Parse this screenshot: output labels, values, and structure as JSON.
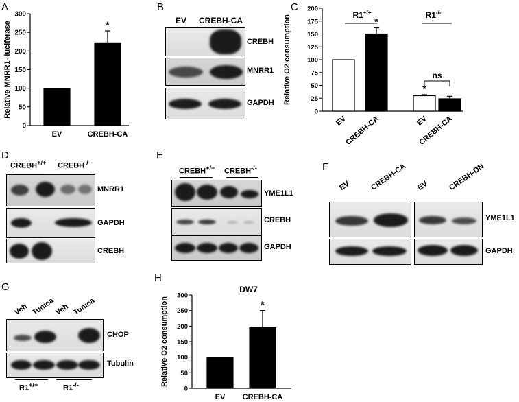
{
  "panels": {
    "A": {
      "letter": "A"
    },
    "B": {
      "letter": "B",
      "lanes": [
        "EV",
        "CREBH-CA"
      ],
      "rows": [
        "CREBH",
        "MNRR1",
        "GAPDH"
      ]
    },
    "C": {
      "letter": "C",
      "group_labels": [
        "R1+/+",
        "R1-/-"
      ],
      "ns_label": "ns"
    },
    "D": {
      "letter": "D",
      "groups": [
        "CREBH+/+",
        "CREBH-/-"
      ],
      "rows": [
        "MNRR1",
        "GAPDH",
        "CREBH"
      ]
    },
    "E": {
      "letter": "E",
      "groups": [
        "CREBH+/+",
        "CREBH-/-"
      ],
      "rows": [
        "YME1L1",
        "CREBH",
        "GAPDH"
      ]
    },
    "F": {
      "letter": "F",
      "lanes_left": [
        "EV",
        "CREBH-CA"
      ],
      "lanes_right": [
        "EV",
        "CREBH-DN"
      ],
      "rows": [
        "YME1L1",
        "GAPDH"
      ]
    },
    "G": {
      "letter": "G",
      "lanes": [
        "Veh",
        "Tunica",
        "Veh",
        "Tunica"
      ],
      "rows": [
        "CHOP",
        "Tubulin"
      ],
      "groups": [
        "R1+/+",
        "R1-/-"
      ]
    },
    "H": {
      "letter": "H"
    }
  },
  "colors": {
    "bar_dark": "#000000",
    "bar_open": "#ffffff",
    "band": "#1b1b1b"
  },
  "chart_data": [
    {
      "panel": "A",
      "type": "bar",
      "categories": [
        "EV",
        "CREBH-CA"
      ],
      "values": [
        100,
        222
      ],
      "errors": [
        0,
        32
      ],
      "significance": [
        "",
        "*"
      ],
      "ylabel": "Relative MNRR1- luciferase",
      "ylim": [
        0,
        300
      ],
      "yticks": [
        0,
        50,
        100,
        150,
        200,
        250,
        300
      ],
      "grid": false
    },
    {
      "panel": "C",
      "type": "bar",
      "categories": [
        "EV",
        "CREBH-CA",
        "EV",
        "CREBH-CA"
      ],
      "groups": [
        "R1+/+",
        "R1+/+",
        "R1-/-",
        "R1-/-"
      ],
      "values": [
        100,
        150,
        30,
        24
      ],
      "errors": [
        0,
        12,
        2,
        5
      ],
      "fills": [
        "white",
        "black",
        "white",
        "black"
      ],
      "significance": [
        "",
        "*",
        "*",
        ""
      ],
      "ylabel": "Relative O2 consumption",
      "ylim": [
        0,
        200
      ],
      "yticks": [
        0,
        25,
        50,
        75,
        100,
        125,
        150,
        175,
        200
      ],
      "grid": false
    },
    {
      "panel": "H",
      "type": "bar",
      "title": "DW7",
      "categories": [
        "EV",
        "CREBH-CA"
      ],
      "values": [
        100,
        195
      ],
      "errors": [
        0,
        55
      ],
      "significance": [
        "",
        "*"
      ],
      "ylabel": "Relative O2 consumption",
      "ylim": [
        0,
        300
      ],
      "yticks": [
        0,
        50,
        100,
        150,
        200,
        250,
        300
      ],
      "grid": false
    }
  ]
}
